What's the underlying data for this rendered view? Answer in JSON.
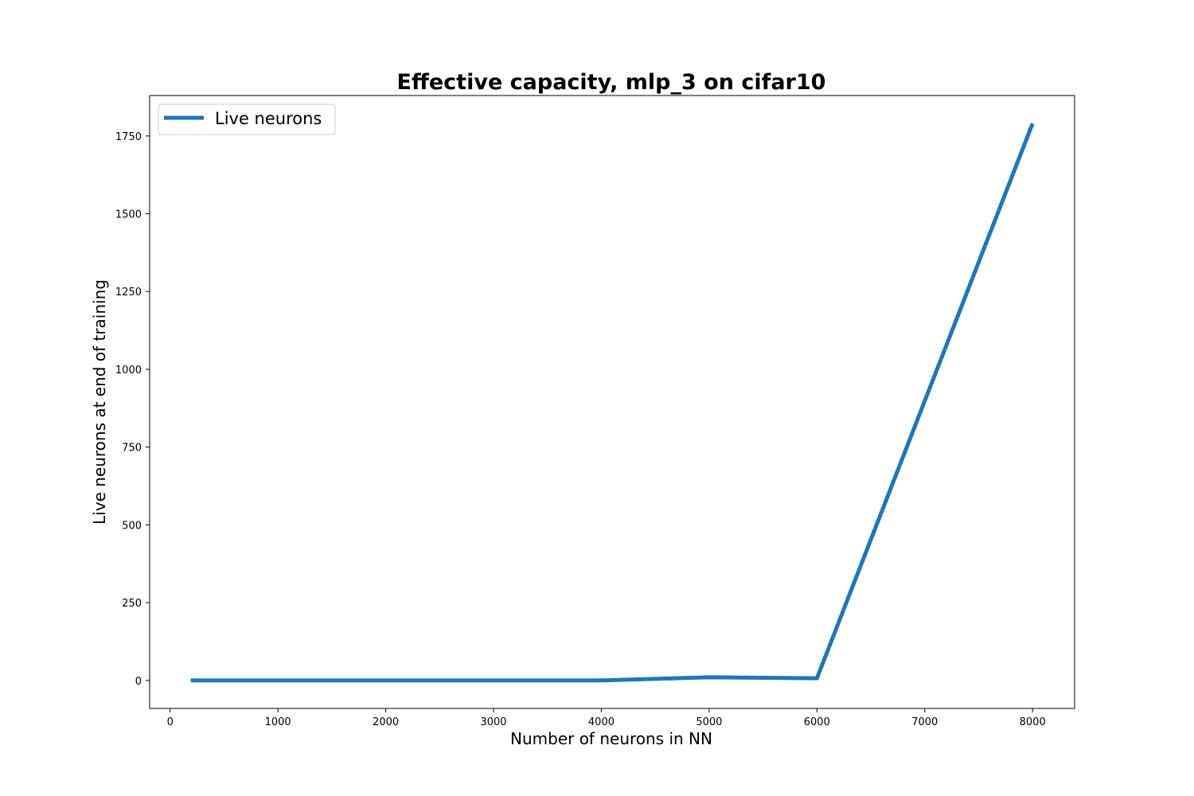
{
  "chart_data": {
    "type": "line",
    "title": "Effective capacity, mlp_3 on cifar10",
    "xlabel": "Number of neurons in NN",
    "ylabel": "Live neurons at end of training",
    "xlim": [
      -190,
      8390
    ],
    "ylim": [
      -90,
      1880
    ],
    "xticks": [
      0,
      1000,
      2000,
      3000,
      4000,
      5000,
      6000,
      7000,
      8000
    ],
    "yticks": [
      0,
      250,
      500,
      750,
      1000,
      1250,
      1500,
      1750
    ],
    "grid": false,
    "legend_position": "top-left",
    "series": [
      {
        "name": "Live neurons",
        "color": "#1f77b4",
        "x": [
          190,
          1000,
          2000,
          3000,
          4000,
          5000,
          6000,
          8000
        ],
        "y": [
          0,
          0,
          0,
          0,
          0,
          10,
          7,
          1790
        ]
      }
    ]
  }
}
